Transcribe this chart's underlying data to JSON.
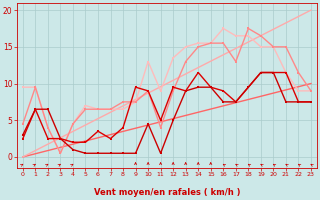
{
  "xlabel": "Vent moyen/en rafales ( km/h )",
  "background_color": "#cce8e8",
  "grid_color": "#aacccc",
  "xlim": [
    -0.5,
    23.5
  ],
  "ylim": [
    -1.5,
    21
  ],
  "yticks": [
    0,
    5,
    10,
    15,
    20
  ],
  "xticks": [
    0,
    1,
    2,
    3,
    4,
    5,
    6,
    7,
    8,
    9,
    10,
    11,
    12,
    13,
    14,
    15,
    16,
    17,
    18,
    19,
    20,
    21,
    22,
    23
  ],
  "line_lower_diag": {
    "x": [
      0,
      23
    ],
    "y": [
      0,
      10.0
    ],
    "color": "#ff6666",
    "lw": 1.0
  },
  "line_upper_diag": {
    "x": [
      0,
      23
    ],
    "y": [
      0,
      20.0
    ],
    "color": "#ffaaaa",
    "lw": 1.0
  },
  "line_dark1": {
    "x": [
      0,
      1,
      2,
      3,
      4,
      5,
      6,
      7,
      8,
      9,
      10,
      11,
      12,
      13,
      14,
      15,
      16,
      17,
      18,
      19,
      20,
      21,
      22,
      23
    ],
    "y": [
      3.0,
      6.5,
      6.5,
      2.5,
      1.0,
      0.5,
      0.5,
      0.5,
      0.5,
      0.5,
      4.5,
      0.5,
      5.0,
      9.0,
      9.5,
      9.5,
      7.5,
      7.5,
      9.5,
      11.5,
      11.5,
      7.5,
      7.5,
      7.5
    ],
    "color": "#cc0000",
    "lw": 1.0,
    "ms": 2.0
  },
  "line_dark2": {
    "x": [
      0,
      1,
      2,
      3,
      4,
      5,
      6,
      7,
      8,
      9,
      10,
      11,
      12,
      13,
      14,
      15,
      16,
      17,
      18,
      19,
      20,
      21,
      22,
      23
    ],
    "y": [
      2.5,
      6.5,
      2.5,
      2.5,
      2.0,
      2.0,
      3.5,
      2.5,
      4.0,
      9.5,
      9.0,
      5.0,
      9.5,
      9.0,
      11.5,
      9.5,
      9.0,
      7.5,
      9.5,
      11.5,
      11.5,
      11.5,
      7.5,
      7.5
    ],
    "color": "#dd0000",
    "lw": 1.0,
    "ms": 2.0
  },
  "line_pink1": {
    "x": [
      0,
      1,
      2,
      3,
      4,
      5,
      6,
      7,
      8,
      9,
      10,
      11,
      12,
      13,
      14,
      15,
      16,
      17,
      18,
      19,
      20,
      21,
      22,
      23
    ],
    "y": [
      4.5,
      9.5,
      4.0,
      0.5,
      4.5,
      6.5,
      6.5,
      6.5,
      7.5,
      7.5,
      9.0,
      4.0,
      9.0,
      13.0,
      15.0,
      15.5,
      15.5,
      13.0,
      17.5,
      16.5,
      15.0,
      15.0,
      11.5,
      9.0
    ],
    "color": "#ff8888",
    "lw": 1.0,
    "ms": 2.0
  },
  "line_pink2": {
    "x": [
      0,
      1,
      2,
      3,
      4,
      5,
      6,
      7,
      8,
      9,
      10,
      11,
      12,
      13,
      14,
      15,
      16,
      17,
      18,
      19,
      20,
      21,
      22,
      23
    ],
    "y": [
      9.5,
      9.5,
      4.0,
      0.5,
      4.5,
      7.0,
      6.5,
      6.5,
      6.5,
      7.5,
      13.0,
      9.0,
      13.5,
      15.0,
      15.5,
      15.5,
      17.5,
      16.5,
      16.5,
      15.0,
      15.0,
      11.5,
      9.0,
      9.0
    ],
    "color": "#ffbbbb",
    "lw": 1.0,
    "ms": 2.0
  },
  "arrows": {
    "x": [
      0,
      1,
      2,
      3,
      4,
      9,
      10,
      11,
      12,
      13,
      14,
      15,
      16,
      17,
      18,
      19,
      20,
      21,
      22,
      23
    ],
    "angles": [
      135,
      135,
      135,
      135,
      135,
      180,
      180,
      180,
      180,
      180,
      180,
      180,
      225,
      225,
      225,
      225,
      225,
      225,
      225,
      225
    ]
  }
}
